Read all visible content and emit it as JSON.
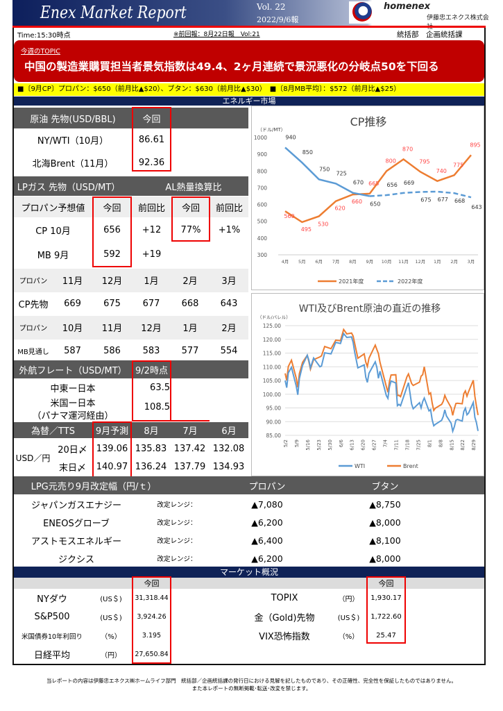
{
  "header": {
    "title": "Enex Market Report",
    "vol": "Vol. 22",
    "date": "2022/9/6報",
    "logo_name": "homenex",
    "logo_company": "伊藤忠エネクス株式会社"
  },
  "info": {
    "time": "Time:15:30時点",
    "previous": "※前回報：8月22日報　Vol:21",
    "dept": "統括部　企画統括課"
  },
  "topic": {
    "label": "今週のTOPIC",
    "text": "中国の製造業購買担当者景気指数は49.4、2ヶ月連続で景況悪化の分岐点50を下回る"
  },
  "highlight": "■〔9月CP〕プロパン：$650（前月比▲$20）、ブタン：$630（前月比▲$30）　■〔8月MB平均〕：$572（前月比▲$25）",
  "energy_title": "エネルギー市場",
  "crude": {
    "header": "原油 先物(USD/BBL)",
    "col": "今回",
    "rows": [
      {
        "label": "NY/WTI（10月）",
        "value": "86.61"
      },
      {
        "label": "北海Brent（11月）",
        "value": "92.36"
      }
    ]
  },
  "lpg": {
    "header": "LPガス 先物（USD/MT）",
    "al_header": "AL熱量換算比",
    "cols": [
      "プロパン予想値",
      "今回",
      "前回比",
      "今回",
      "前回比"
    ],
    "rows": [
      {
        "label": "CP 10月",
        "now": "656",
        "diff": "+12",
        "al_now": "77%",
        "al_diff": "+1%"
      },
      {
        "label": "MB 9月",
        "now": "592",
        "diff": "+19",
        "al_now": "",
        "al_diff": ""
      }
    ]
  },
  "forward": {
    "cp_months": [
      "プロパン",
      "11月",
      "12月",
      "1月",
      "2月",
      "3月"
    ],
    "cp_values": [
      "CP先物",
      "669",
      "675",
      "677",
      "668",
      "643"
    ],
    "mb_months": [
      "プロパン",
      "10月",
      "11月",
      "12月",
      "1月",
      "2月"
    ],
    "mb_values": [
      "MB見通し",
      "587",
      "586",
      "583",
      "577",
      "554"
    ]
  },
  "freight": {
    "header": "外航フレート（USD/MT）",
    "col": "9/2時点",
    "rows": [
      {
        "label": "中東ー日本",
        "value": "63.5"
      },
      {
        "label": "米国ー日本",
        "sub": "（パナマ運河経由）",
        "value": "108.5"
      }
    ]
  },
  "fx": {
    "header": "為替／TTS",
    "cols": [
      "9月予測",
      "8月",
      "7月",
      "6月"
    ],
    "pair": "USD／円",
    "rows": [
      {
        "label": "20日〆",
        "values": [
          "139.06",
          "135.83",
          "137.42",
          "132.08"
        ]
      },
      {
        "label": "末日〆",
        "values": [
          "140.97",
          "136.24",
          "137.79",
          "134.93"
        ]
      }
    ]
  },
  "wholesale": {
    "header": "LPG元売り9月改定幅（円/ｔ）",
    "cols": [
      "プロパン",
      "ブタン"
    ],
    "range_label": "改定レンジ：",
    "rows": [
      {
        "name": "ジャパンガスエナジー",
        "propane": "▲7,080",
        "butane": "▲8,750"
      },
      {
        "name": "ENEOSグローブ",
        "propane": "▲6,200",
        "butane": "▲8,000"
      },
      {
        "name": "アストモスエネルギー",
        "propane": "▲6,400",
        "butane": "▲8,100"
      },
      {
        "name": "ジクシス",
        "propane": "▲6,200",
        "butane": "▲8,000"
      }
    ]
  },
  "market": {
    "title": "マーケット概況",
    "col": "今回",
    "left": [
      {
        "name": "NYダウ",
        "unit": "(US＄)",
        "value": "31,318.44"
      },
      {
        "name": "S&P500",
        "unit": "(US＄)",
        "value": "3,924.26"
      },
      {
        "name": "米国債券10年利回り",
        "unit": "（%）",
        "value": "3.195"
      },
      {
        "name": "日経平均",
        "unit": "（円）",
        "value": "27,650.84"
      }
    ],
    "right": [
      {
        "name": "TOPIX",
        "unit": "（円）",
        "value": "1,930.17"
      },
      {
        "name": "金（Gold)先物",
        "unit": "(US＄)",
        "value": "1,722.60"
      },
      {
        "name": "VIX恐怖指数",
        "unit": "（%）",
        "value": "25.47"
      }
    ]
  },
  "footer": [
    "当レポートの内容は伊藤忠エネクス㈱ホームライフ部門　統括部／企画統括課の発行日における見解を記したものであり、その正確性、完全性を保証したものではありません。",
    "また本レポートの無断掲載･転送･改変を禁じます。"
  ],
  "chart_data": [
    {
      "type": "line",
      "title": "CP推移",
      "ylabel": "（ドル/MT）",
      "ylim": [
        300,
        1000
      ],
      "yticks": [
        300,
        400,
        500,
        600,
        700,
        800,
        900,
        1000
      ],
      "grid": false,
      "legend": "bottom",
      "categories": [
        "4月",
        "5月",
        "6月",
        "7月",
        "8月",
        "9月",
        "10月",
        "11月",
        "12月",
        "1月",
        "2月",
        "3月"
      ],
      "series": [
        {
          "name": "2021年度",
          "color": "#ed7d31",
          "values": [
            560,
            495,
            530,
            620,
            660,
            665,
            800,
            870,
            795,
            740,
            775,
            895
          ]
        },
        {
          "name": "2022年度",
          "color": "#5b9bd5",
          "values": [
            940,
            850,
            750,
            725,
            670,
            650,
            656,
            669,
            675,
            677,
            668,
            643
          ]
        }
      ]
    },
    {
      "type": "line",
      "title": "WTI及びBrent原油の直近の推移",
      "ylabel": "（ドル/バレル）",
      "ylim": [
        85,
        125
      ],
      "yticks": [
        "85.00",
        "90.00",
        "95.00",
        "100.00",
        "105.00",
        "110.00",
        "115.00",
        "120.00",
        "125.00"
      ],
      "grid": true,
      "legend": "bottom",
      "xticks": [
        "5/2",
        "5/9",
        "5/16",
        "5/23",
        "5/30",
        "6/6",
        "6/13",
        "6/20",
        "6/27",
        "7/4",
        "7/11",
        "7/18",
        "7/25",
        "8/1",
        "8/8",
        "8/15",
        "8/22",
        "8/29"
      ],
      "x": [
        "5/2",
        "5/3",
        "5/4",
        "5/6",
        "5/9",
        "5/10",
        "5/11",
        "5/13",
        "5/16",
        "5/17",
        "5/18",
        "5/20",
        "5/24",
        "5/25",
        "5/27",
        "5/31",
        "6/3",
        "6/6",
        "6/8",
        "6/10",
        "6/13",
        "6/14",
        "6/15",
        "6/17",
        "6/21",
        "6/22",
        "6/23",
        "6/24",
        "6/28",
        "6/29",
        "6/30",
        "7/1",
        "7/5",
        "7/6",
        "7/7",
        "7/8",
        "7/11",
        "7/12",
        "7/13",
        "7/14",
        "7/18",
        "7/19",
        "7/21",
        "7/22",
        "7/26",
        "7/27",
        "7/28",
        "7/29",
        "8/1",
        "8/2",
        "8/3",
        "8/4",
        "8/5",
        "8/9",
        "8/10",
        "8/11",
        "8/12",
        "8/15",
        "8/16",
        "8/17",
        "8/18",
        "8/19",
        "8/22",
        "8/23",
        "8/24",
        "8/25",
        "8/26",
        "8/29",
        "8/30",
        "8/31",
        "9/1"
      ],
      "series": [
        {
          "name": "WTI",
          "color": "#5b9bd5",
          "values": [
            105,
            102.4,
            107.8,
            109.8,
            103,
            99.8,
            105.7,
            110.5,
            114.2,
            112.4,
            109.6,
            113.2,
            110,
            110.3,
            115.1,
            114.7,
            118.9,
            118.5,
            122.1,
            120.7,
            120.9,
            118.9,
            115.3,
            109.6,
            110.7,
            106.2,
            104.3,
            107.6,
            111.8,
            109.8,
            105.8,
            108.4,
            99.5,
            98.5,
            102.7,
            104.8,
            104.1,
            95.8,
            96.3,
            95.8,
            102.6,
            104.2,
            96.4,
            94.7,
            96.9,
            95,
            97.3,
            98.6,
            93.9,
            94.4,
            90.7,
            88.5,
            89,
            90.5,
            91.9,
            94.3,
            92.1,
            89.4,
            86.5,
            88.1,
            90.5,
            90.8,
            90.2,
            93.7,
            94.9,
            92.5,
            93.1,
            97,
            91.6,
            89.6,
            86.6
          ]
        },
        {
          "name": "Brent",
          "color": "#ed7d31",
          "values": [
            107.6,
            105,
            110.1,
            112.4,
            105.9,
            102.5,
            107.5,
            111.6,
            114.2,
            111.9,
            109.1,
            112.6,
            113.6,
            114,
            117.4,
            116.6,
            119.7,
            119.5,
            123.6,
            122,
            122.3,
            121.2,
            118.5,
            113.1,
            114.7,
            111.7,
            110.1,
            113.1,
            117.9,
            116.3,
            114.8,
            111.6,
            102.8,
            100.7,
            104.7,
            107,
            107.1,
            99.5,
            99.6,
            99.1,
            106.3,
            107.4,
            103.9,
            103.2,
            104.4,
            106.6,
            107.1,
            110,
            100,
            100.5,
            96.8,
            94.1,
            94.9,
            96.3,
            97.4,
            99.6,
            98.2,
            95.1,
            92.3,
            94.7,
            96.6,
            96.7,
            96.5,
            100.2,
            101.2,
            99.3,
            100.9,
            105.1,
            99.3,
            95.6,
            92.4
          ]
        }
      ]
    }
  ]
}
